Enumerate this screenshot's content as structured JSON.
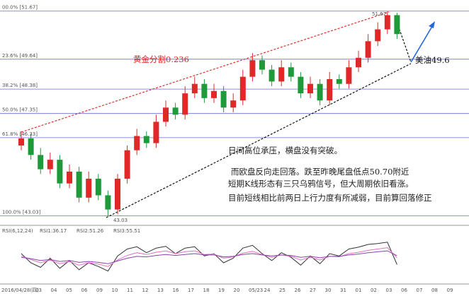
{
  "chart_data": {
    "type": "candlestick",
    "ylim": [
      42.9,
      51.9
    ],
    "levels": [
      {
        "value": 51.67,
        "label": "00.0% [51.67]"
      },
      {
        "value": 49.64,
        "label": "23.6% [49.64]"
      },
      {
        "value": 48.38,
        "label": "38.2% [48.38]"
      },
      {
        "value": 47.35,
        "label": "50.0% [47.35]"
      },
      {
        "value": 46.33,
        "label": "61.8% [46.33]"
      },
      {
        "value": 43.03,
        "label": "100.0% [43.03]"
      }
    ],
    "level_color": "#6a6ad8",
    "up_color": "#e02828",
    "down_color": "#1f9a3a",
    "open": [
      46.0,
      46.3,
      45.6,
      45.0,
      45.4,
      44.4,
      44.9,
      43.8,
      44.6,
      43.9,
      43.3,
      44.6,
      45.8,
      46.4,
      46.1,
      47.0,
      47.6,
      47.3,
      48.2,
      48.6,
      48.0,
      48.3,
      47.6,
      47.9,
      48.9,
      49.6,
      49.2,
      48.7,
      49.3,
      48.9,
      48.2,
      48.6,
      47.9,
      48.8,
      48.6,
      49.3,
      49.7,
      50.4,
      50.9,
      51.5
    ],
    "high": [
      46.6,
      46.5,
      45.9,
      45.7,
      45.6,
      45.2,
      45.1,
      44.9,
      44.8,
      44.1,
      44.8,
      46.0,
      46.7,
      46.6,
      47.3,
      47.9,
      47.8,
      48.5,
      48.9,
      48.8,
      48.6,
      48.5,
      48.2,
      49.2,
      49.9,
      49.8,
      49.4,
      49.6,
      49.5,
      49.1,
      48.9,
      48.8,
      49.1,
      49.0,
      49.6,
      50.0,
      50.7,
      51.2,
      51.67,
      51.6
    ],
    "low": [
      45.8,
      45.4,
      44.8,
      44.8,
      44.2,
      44.2,
      43.6,
      43.6,
      43.7,
      43.03,
      43.1,
      44.4,
      45.6,
      45.9,
      45.9,
      46.8,
      47.1,
      47.1,
      48.0,
      47.8,
      47.8,
      47.4,
      47.4,
      47.7,
      48.7,
      49.0,
      48.5,
      48.5,
      48.7,
      48.0,
      48.0,
      47.7,
      47.7,
      48.4,
      48.4,
      49.1,
      49.5,
      50.2,
      50.7,
      50.5
    ],
    "close": [
      46.3,
      45.6,
      45.0,
      45.4,
      44.4,
      44.9,
      43.8,
      44.6,
      43.9,
      43.3,
      44.6,
      45.8,
      46.4,
      46.1,
      47.0,
      47.6,
      47.3,
      48.2,
      48.6,
      48.0,
      48.3,
      47.6,
      47.9,
      48.9,
      49.6,
      49.2,
      48.7,
      49.3,
      48.9,
      48.2,
      48.6,
      47.9,
      48.8,
      48.6,
      49.3,
      49.7,
      50.4,
      50.9,
      51.5,
      50.7
    ],
    "peak_label": "51.67",
    "low_label": "43.03",
    "fib_note": "黄金分割0.236",
    "price_note": "美油49.6",
    "commentary": [
      "日间高位承压，横盘没有突破。",
      "而欧盘反向走回落。跌至昨晚尾盘低点50.70附近",
      "短期K线形态有三只乌鸦信号，但大周期依旧看涨。",
      "目前短线相比前两日上行力度有所减弱，目前算回落修正"
    ],
    "rsi": {
      "title": "RSI(6,12,24)",
      "ylim": [
        0,
        100
      ],
      "series": [
        {
          "name": "RSI1:36.17",
          "color": "#333333",
          "values": [
            60,
            40,
            30,
            50,
            28,
            45,
            25,
            40,
            32,
            22,
            55,
            70,
            75,
            62,
            72,
            76,
            60,
            72,
            75,
            55,
            60,
            40,
            50,
            72,
            78,
            60,
            45,
            62,
            52,
            35,
            55,
            38,
            60,
            55,
            70,
            74,
            80,
            82,
            85,
            36.17
          ]
        },
        {
          "name": "RSI2:51.26",
          "color": "#e070c0",
          "values": [
            55,
            47,
            40,
            46,
            38,
            43,
            35,
            40,
            37,
            32,
            46,
            56,
            62,
            58,
            63,
            66,
            60,
            64,
            66,
            58,
            59,
            50,
            53,
            61,
            65,
            58,
            52,
            57,
            54,
            46,
            52,
            46,
            54,
            53,
            60,
            63,
            67,
            70,
            73,
            51.26
          ]
        },
        {
          "name": "RSI3:55.51",
          "color": "#8844aa",
          "values": [
            52,
            49,
            45,
            47,
            43,
            45,
            41,
            43,
            41,
            38,
            44,
            50,
            54,
            53,
            56,
            58,
            56,
            58,
            60,
            57,
            57,
            53,
            54,
            58,
            60,
            57,
            55,
            57,
            56,
            52,
            54,
            51,
            54,
            54,
            57,
            59,
            62,
            64,
            66,
            55.51
          ]
        }
      ]
    },
    "date_labels": [
      "2016/04/28(四)",
      "03",
      "04",
      "05",
      "06",
      "09",
      "10",
      "11",
      "12",
      "13",
      "16",
      "17",
      "18",
      "19",
      "20",
      "05/23",
      "24",
      "25",
      "26",
      "27",
      "30",
      "31",
      "01",
      "02",
      "03",
      "06",
      "07",
      "08",
      "09"
    ]
  }
}
